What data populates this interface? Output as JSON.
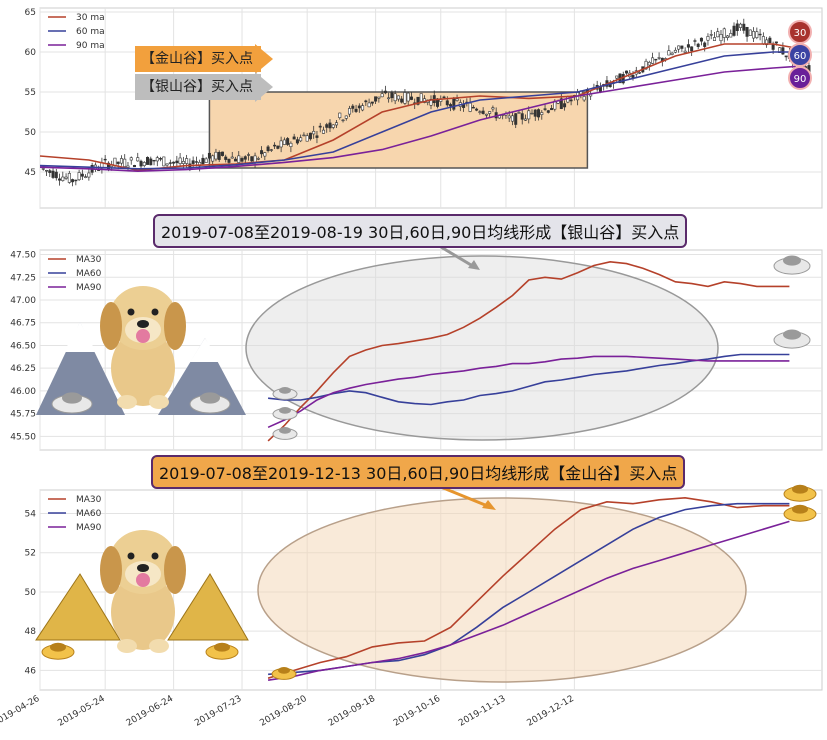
{
  "chart_data": [
    {
      "type": "candlestick",
      "panel": "price",
      "ylim": [
        40.5,
        65.5
      ],
      "yticks": [
        45,
        50,
        55,
        60,
        65
      ],
      "legend": {
        "placement": "top-left",
        "entries": [
          "30 ma",
          "60 ma",
          "90 ma"
        ]
      },
      "series": [
        {
          "name": "30 ma",
          "color": "#b5412a",
          "x": [
            0,
            15,
            30,
            45,
            60,
            75,
            90,
            105,
            120,
            135,
            150,
            165,
            180,
            195,
            210,
            225,
            232
          ],
          "y": [
            47.0,
            46.5,
            45.2,
            45.8,
            46.0,
            46.5,
            49.0,
            52.5,
            54.0,
            54.5,
            54.2,
            54.5,
            57.0,
            59.5,
            61.0,
            61.0,
            60.5
          ]
        },
        {
          "name": "60 ma",
          "color": "#37409a",
          "x": [
            0,
            15,
            30,
            45,
            60,
            75,
            90,
            105,
            120,
            135,
            150,
            165,
            180,
            195,
            210,
            225,
            232
          ],
          "y": [
            45.8,
            45.6,
            45.4,
            45.5,
            45.9,
            46.5,
            47.5,
            50.0,
            52.5,
            54.0,
            54.5,
            55.0,
            56.5,
            58.0,
            59.5,
            60.0,
            60.0
          ]
        },
        {
          "name": "90 ma",
          "color": "#7a2199",
          "x": [
            0,
            15,
            30,
            45,
            60,
            75,
            90,
            105,
            120,
            135,
            150,
            165,
            180,
            195,
            210,
            225,
            232
          ],
          "y": [
            45.6,
            45.4,
            45.1,
            45.3,
            45.7,
            46.2,
            46.8,
            47.8,
            49.5,
            51.5,
            53.0,
            54.5,
            55.5,
            56.5,
            57.5,
            58.0,
            58.2
          ]
        }
      ],
      "annotation_labels": {
        "gold": "【金山谷】买入点",
        "silver": "【银山谷】买入点"
      },
      "ma_badges": [
        "30",
        "60",
        "90"
      ]
    },
    {
      "type": "line",
      "panel": "silver-valley",
      "ylim": [
        45.35,
        47.55
      ],
      "yticks": [
        "45.50",
        "45.75",
        "46.00",
        "46.25",
        "46.50",
        "46.75",
        "47.00",
        "47.25",
        "47.50"
      ],
      "legend": {
        "placement": "top-left",
        "entries": [
          "MA30",
          "MA60",
          "MA90"
        ]
      },
      "series": [
        {
          "name": "MA30",
          "color": "#b5412a",
          "x": [
            70,
            75,
            80,
            85,
            90,
            95,
            100,
            105,
            110,
            115,
            120,
            125,
            130,
            135,
            140,
            145,
            150,
            155,
            160,
            165,
            170,
            175,
            180,
            185,
            190,
            195,
            200,
            205,
            210,
            215,
            220,
            225,
            230
          ],
          "y": [
            45.45,
            45.62,
            45.82,
            46.0,
            46.2,
            46.38,
            46.45,
            46.5,
            46.52,
            46.55,
            46.58,
            46.62,
            46.7,
            46.8,
            46.92,
            47.05,
            47.22,
            47.25,
            47.23,
            47.3,
            47.38,
            47.42,
            47.4,
            47.35,
            47.28,
            47.2,
            47.18,
            47.15,
            47.2,
            47.18,
            47.15,
            47.15,
            47.15
          ]
        },
        {
          "name": "MA60",
          "color": "#37409a",
          "x": [
            70,
            75,
            80,
            85,
            90,
            95,
            100,
            105,
            110,
            115,
            120,
            125,
            130,
            135,
            140,
            145,
            150,
            155,
            160,
            165,
            170,
            175,
            180,
            185,
            190,
            195,
            200,
            205,
            210,
            215,
            220,
            225,
            230
          ],
          "y": [
            45.92,
            45.9,
            45.9,
            45.93,
            45.97,
            46.0,
            45.98,
            45.93,
            45.88,
            45.86,
            45.85,
            45.88,
            45.9,
            45.95,
            45.97,
            46.0,
            46.05,
            46.1,
            46.12,
            46.15,
            46.18,
            46.2,
            46.22,
            46.25,
            46.28,
            46.3,
            46.33,
            46.35,
            46.38,
            46.4,
            46.4,
            46.4,
            46.4
          ]
        },
        {
          "name": "MA90",
          "color": "#7a2199",
          "x": [
            70,
            75,
            80,
            85,
            90,
            95,
            100,
            105,
            110,
            115,
            120,
            125,
            130,
            135,
            140,
            145,
            150,
            155,
            160,
            165,
            170,
            175,
            180,
            185,
            190,
            195,
            200,
            205,
            210,
            215,
            220,
            225,
            230
          ],
          "y": [
            45.6,
            45.68,
            45.78,
            45.9,
            45.98,
            46.03,
            46.07,
            46.1,
            46.13,
            46.15,
            46.18,
            46.2,
            46.22,
            46.25,
            46.27,
            46.3,
            46.3,
            46.32,
            46.35,
            46.36,
            46.38,
            46.38,
            46.38,
            46.37,
            46.36,
            46.35,
            46.34,
            46.33,
            46.33,
            46.33,
            46.33,
            46.33,
            46.33
          ]
        }
      ],
      "callout": "2019-07-08至2019-08-19 30日,60日,90日均线形成【银山谷】买入点"
    },
    {
      "type": "line",
      "panel": "gold-valley",
      "ylim": [
        45.0,
        55.2
      ],
      "yticks": [
        "46",
        "48",
        "50",
        "52",
        "54"
      ],
      "xticks": [
        "2019-04-26",
        "2019-05-24",
        "2019-06-24",
        "2019-07-23",
        "2019-08-20",
        "2019-09-18",
        "2019-10-16",
        "2019-11-13",
        "2019-12-12"
      ],
      "legend": {
        "placement": "top-left",
        "entries": [
          "MA30",
          "MA60",
          "MA90"
        ]
      },
      "series": [
        {
          "name": "MA30",
          "color": "#b5412a",
          "x": [
            70,
            78,
            86,
            94,
            102,
            110,
            118,
            126,
            134,
            142,
            150,
            158,
            166,
            174,
            182,
            190,
            198,
            206,
            214,
            222,
            230
          ],
          "y": [
            45.6,
            46.0,
            46.4,
            46.7,
            47.2,
            47.4,
            47.5,
            48.2,
            49.5,
            50.8,
            52.0,
            53.2,
            54.2,
            54.6,
            54.5,
            54.7,
            54.8,
            54.6,
            54.3,
            54.4,
            54.4
          ]
        },
        {
          "name": "MA60",
          "color": "#37409a",
          "x": [
            70,
            78,
            86,
            94,
            102,
            110,
            118,
            126,
            134,
            142,
            150,
            158,
            166,
            174,
            182,
            190,
            198,
            206,
            214,
            222,
            230
          ],
          "y": [
            45.8,
            45.9,
            46.0,
            46.2,
            46.4,
            46.5,
            46.8,
            47.3,
            48.2,
            49.2,
            50.0,
            50.8,
            51.6,
            52.4,
            53.2,
            53.8,
            54.2,
            54.4,
            54.5,
            54.5,
            54.5
          ]
        },
        {
          "name": "MA90",
          "color": "#7a2199",
          "x": [
            70,
            78,
            86,
            94,
            102,
            110,
            118,
            126,
            134,
            142,
            150,
            158,
            166,
            174,
            182,
            190,
            198,
            206,
            214,
            222,
            230
          ],
          "y": [
            45.5,
            45.7,
            46.0,
            46.2,
            46.4,
            46.6,
            46.9,
            47.3,
            47.8,
            48.3,
            48.9,
            49.5,
            50.1,
            50.7,
            51.2,
            51.6,
            52.0,
            52.4,
            52.8,
            53.2,
            53.6
          ]
        }
      ],
      "callout": "2019-07-08至2019-12-13 30日,60日,90日均线形成【金山谷】买入点"
    }
  ]
}
